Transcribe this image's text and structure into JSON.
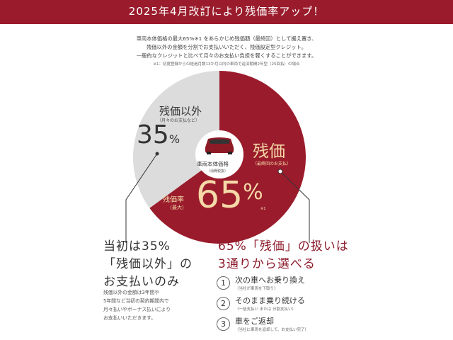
{
  "header": {
    "title": "2025年4月改訂により残価率アップ！"
  },
  "intro": {
    "lines": [
      "車両本体価格の最大65%※1 をあらかじめ残価額（最終回）として据え置き、",
      "残価以外の金額を分割でお支払いいただく、残価設定型クレジット。",
      "一般的なクレジットと比べて月々のお支払い負担を軽くすることができます。"
    ],
    "note": "※1：初度登録からの経過月数13か月以内の車両で返済期間2年型（25回払）の場合"
  },
  "pie": {
    "colors": {
      "residual": "#9a1c2c",
      "other": "#dcdcdc",
      "accent": "#f5d9a8"
    },
    "other": {
      "label": "残価以外",
      "sub": "（月々のお支払など）",
      "value": "35",
      "unit": "%",
      "percent": 35
    },
    "residual": {
      "label": "残価",
      "sub": "（最終回のお支払）",
      "rate_label": "残価率",
      "rate_sub": "（最大）",
      "value": "65",
      "unit": "%",
      "mark": "※1",
      "percent": 65
    },
    "center": {
      "label": "車両本体価格",
      "sub": "（消費税抜）"
    }
  },
  "left": {
    "heading": [
      "当初は35%",
      "「残価以外」の",
      "お支払いのみ"
    ],
    "body": [
      "残価以外の金額は3年間や",
      "5年間など当初の契約期間内で",
      "月々払いやボーナス払いにより",
      "お支払いいただきます。"
    ]
  },
  "right": {
    "heading": [
      "65%「残価」の扱いは",
      "3通りから選べる"
    ],
    "options": [
      {
        "num": "1",
        "title": "次の車へお乗り換え",
        "sub": "（当社が車両を下取り）"
      },
      {
        "num": "2",
        "title": "そのまま乗り続ける",
        "sub": "（一括支払い または 分割支払い）"
      },
      {
        "num": "3",
        "title": "車をご返却",
        "sub": "（当社に車両を返却して、お支払い完了）"
      }
    ]
  }
}
